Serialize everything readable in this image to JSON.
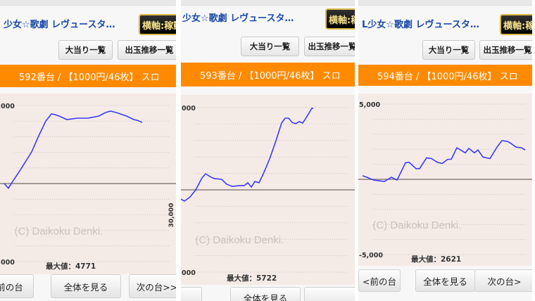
{
  "colors": {
    "accent": "#ff8a00",
    "line": "#3a3aff",
    "title": "#1a4aa8",
    "chart_bg": "#f4ebe7"
  },
  "common": {
    "title": "少女☆歌劇 レヴュースタ…",
    "badge": "横軸:稼動",
    "big_hits_button": "大当り一覧",
    "payout_button": "出玉推移一覧",
    "prev_button": "<前の台",
    "view_all_button": "全体を見る",
    "next_button": "次の台>>",
    "watermark": "(C) Daikoku Denki."
  },
  "panels": [
    {
      "machine": "592番台 / 【1000円/46枚】 スロ",
      "title_shown": "少女☆歌劇 レヴュースタ…",
      "y_top_label": "000",
      "y_bottom_label": "000",
      "x_label": "30,000",
      "max_label": "最大値：4771",
      "prev_shown": "前の台",
      "next_shown": "次の台>>"
    },
    {
      "machine": "593番台 / 【1000円/46枚】 スロ",
      "title_shown": "少女☆歌劇 レヴュースタ…",
      "y_top_label": "000",
      "y_bottom_label": "000",
      "x_label": "",
      "max_label": "最大値：5722",
      "prev_shown": "",
      "next_shown": ""
    },
    {
      "machine": "594番台 / 【1000円/46枚】 スロ",
      "title_shown": "L少女☆歌劇 レヴュースタ…",
      "y_top_label": "5,000",
      "y_bottom_label": "-5,000",
      "x_label": "",
      "max_label": "最大値：2621",
      "prev_shown": "<前の台",
      "next_shown": "次の台>"
    }
  ],
  "chart_data": [
    {
      "type": "line",
      "title": "592番台",
      "ylim": [
        -5000,
        5000
      ],
      "max": 4771,
      "points": [
        [
          0,
          0
        ],
        [
          6,
          -300
        ],
        [
          12,
          130
        ],
        [
          24,
          950
        ],
        [
          39,
          2030
        ],
        [
          49,
          3060
        ],
        [
          59,
          4000
        ],
        [
          67,
          4460
        ],
        [
          72,
          4420
        ],
        [
          79,
          4300
        ],
        [
          89,
          4100
        ],
        [
          104,
          4190
        ],
        [
          119,
          4190
        ],
        [
          134,
          4320
        ],
        [
          144,
          4550
        ],
        [
          151,
          4640
        ],
        [
          159,
          4550
        ],
        [
          174,
          4320
        ],
        [
          184,
          4100
        ],
        [
          189,
          4050
        ],
        [
          196,
          3920
        ]
      ]
    },
    {
      "type": "line",
      "title": "593番台",
      "ylim": [
        -5000,
        5000
      ],
      "max": 5722,
      "points": [
        [
          0,
          -560
        ],
        [
          5,
          -680
        ],
        [
          13,
          -430
        ],
        [
          21,
          0
        ],
        [
          30,
          730
        ],
        [
          35,
          980
        ],
        [
          43,
          770
        ],
        [
          48,
          680
        ],
        [
          58,
          640
        ],
        [
          65,
          340
        ],
        [
          73,
          210
        ],
        [
          83,
          260
        ],
        [
          90,
          260
        ],
        [
          95,
          430
        ],
        [
          100,
          170
        ],
        [
          105,
          510
        ],
        [
          111,
          430
        ],
        [
          118,
          1070
        ],
        [
          126,
          1880
        ],
        [
          135,
          2990
        ],
        [
          143,
          4060
        ],
        [
          148,
          4360
        ],
        [
          153,
          4360
        ],
        [
          158,
          4100
        ],
        [
          163,
          4020
        ],
        [
          168,
          4150
        ],
        [
          173,
          4060
        ],
        [
          180,
          4530
        ],
        [
          186,
          4960
        ],
        [
          188,
          4960
        ]
      ]
    },
    {
      "type": "line",
      "title": "594番台",
      "ylim": [
        -5000,
        5000
      ],
      "max": 2621,
      "points": [
        [
          0,
          240
        ],
        [
          6,
          140
        ],
        [
          16,
          -50
        ],
        [
          31,
          -140
        ],
        [
          41,
          140
        ],
        [
          49,
          -50
        ],
        [
          61,
          1100
        ],
        [
          66,
          1140
        ],
        [
          76,
          710
        ],
        [
          81,
          710
        ],
        [
          91,
          1430
        ],
        [
          98,
          1380
        ],
        [
          106,
          1140
        ],
        [
          113,
          1050
        ],
        [
          121,
          1330
        ],
        [
          126,
          1330
        ],
        [
          134,
          2100
        ],
        [
          141,
          1900
        ],
        [
          146,
          1760
        ],
        [
          151,
          2050
        ],
        [
          159,
          1760
        ],
        [
          164,
          1950
        ],
        [
          171,
          1480
        ],
        [
          181,
          1380
        ],
        [
          191,
          2140
        ],
        [
          198,
          2570
        ],
        [
          206,
          2520
        ],
        [
          211,
          2380
        ],
        [
          218,
          2140
        ],
        [
          226,
          2100
        ],
        [
          231,
          1950
        ]
      ]
    }
  ]
}
